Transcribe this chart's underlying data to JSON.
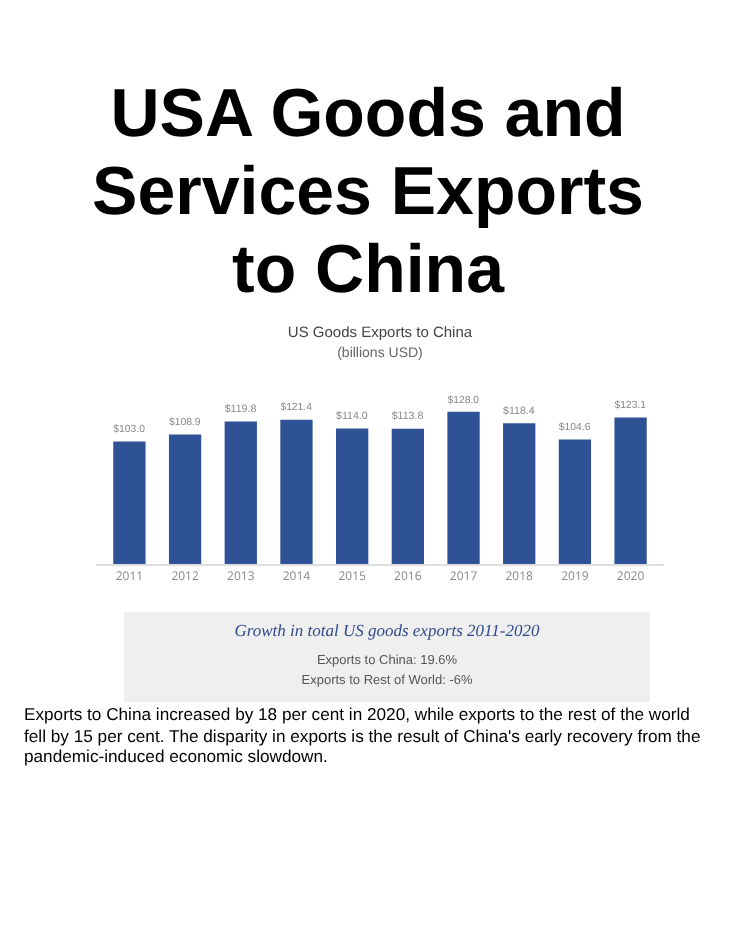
{
  "chart_data": {
    "type": "bar",
    "title": "USA Goods and Services Exports to China",
    "subtitle": "US Goods Exports to China",
    "categories": [
      "2011",
      "2012",
      "2013",
      "2014",
      "2015",
      "2016",
      "2017",
      "2018",
      "2019",
      "2020"
    ],
    "values": [
      103.0,
      108.9,
      119.8,
      121.4,
      114.0,
      113.8,
      128.0,
      118.4,
      104.6,
      123.1
    ],
    "value_labels": [
      "$103.0",
      "$108.9",
      "$119.8",
      "$121.4",
      "$114.0",
      "$113.8",
      "$128.0",
      "$118.4",
      "$104.6",
      "$123.1"
    ],
    "color": "#2f5297",
    "legend": false,
    "annotations": [
      "(billions USD)",
      "Growth in total US goods exports 2011-2020",
      "Exports to China: 19.6%",
      "Exports to Rest of World: -6%",
      "Exports to China increased by 18 per cent in 2020, while exports to the rest of the world fell by 15 per cent. The disparity in exports is the result of China's early recovery from the pandemic-induced economic slowdown."
    ]
  }
}
